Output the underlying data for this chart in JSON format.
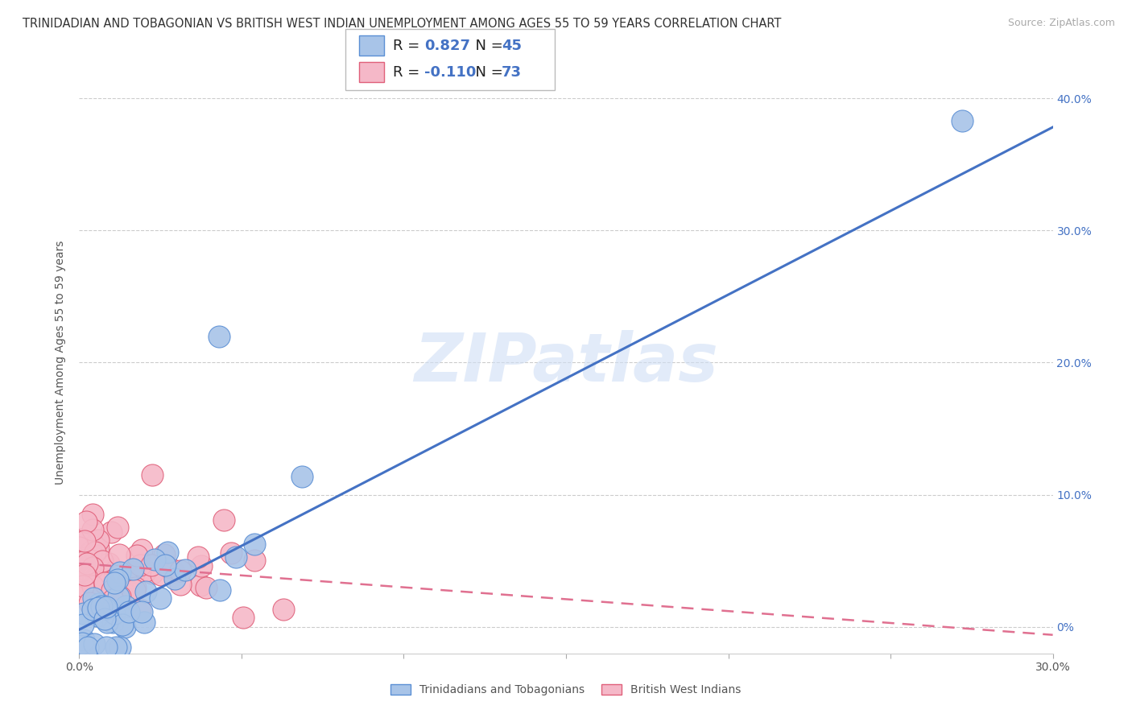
{
  "title": "TRINIDADIAN AND TOBAGONIAN VS BRITISH WEST INDIAN UNEMPLOYMENT AMONG AGES 55 TO 59 YEARS CORRELATION CHART",
  "source": "Source: ZipAtlas.com",
  "ylabel": "Unemployment Among Ages 55 to 59 years",
  "xlim": [
    0.0,
    0.3
  ],
  "ylim": [
    -0.02,
    0.42
  ],
  "yticks": [
    0.0,
    0.1,
    0.2,
    0.3,
    0.4
  ],
  "background_color": "#ffffff",
  "watermark": "ZIPatlas",
  "blue_line_slope": 1.267,
  "blue_line_intercept": -0.002,
  "pink_line_slope": -0.18,
  "pink_line_intercept": 0.048,
  "series": [
    {
      "name": "Trinidadians and Tobagonians",
      "R": 0.827,
      "N": 45,
      "color": "#a8c4e8",
      "edge_color": "#5b8fd4",
      "seed": 7
    },
    {
      "name": "British West Indians",
      "R": -0.11,
      "N": 73,
      "color": "#f5b8c8",
      "edge_color": "#e0607a",
      "seed": 13
    }
  ],
  "title_fontsize": 10.5,
  "axis_label_fontsize": 10,
  "tick_fontsize": 10,
  "legend_fontsize": 13,
  "right_tick_color": "#4472c4"
}
